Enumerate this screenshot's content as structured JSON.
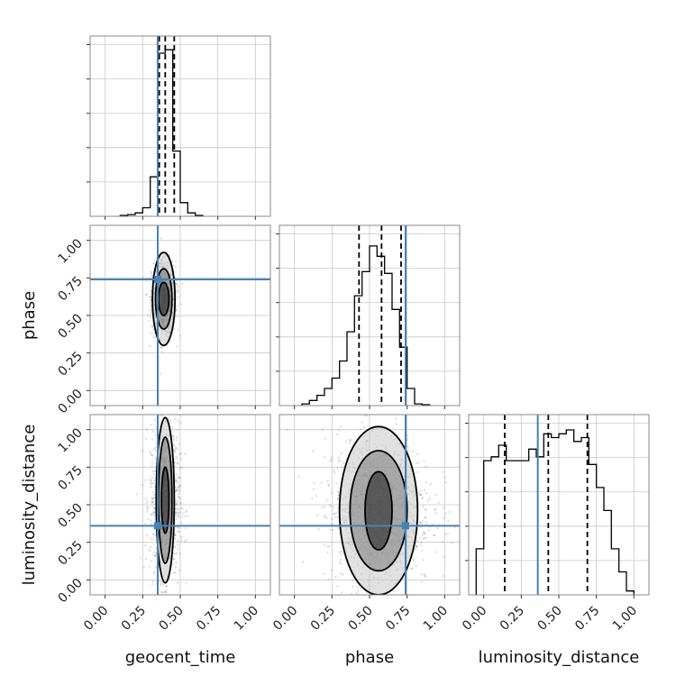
{
  "chart_data": {
    "type": "corner",
    "parameters": [
      "geocent_time",
      "phase",
      "luminosity_distance"
    ],
    "truths": [
      0.35,
      0.74,
      0.36
    ],
    "range": [
      -0.1,
      1.1
    ],
    "ticks": [
      0.0,
      0.25,
      0.5,
      0.75,
      1.0
    ],
    "tick_labels": [
      "0.00",
      "0.25",
      "0.50",
      "0.75",
      "1.00"
    ],
    "grid": true,
    "colors": {
      "truth": "#4682b4",
      "hist": "#000000",
      "grid": "#c8c8c8",
      "frame": "#888888"
    },
    "histograms": [
      {
        "param": "geocent_time",
        "bin_edges": [
          0.1,
          0.15,
          0.2,
          0.25,
          0.3,
          0.35,
          0.4,
          0.45,
          0.5,
          0.55,
          0.6,
          0.65
        ],
        "counts": [
          0.5,
          1,
          2,
          5,
          23,
          95,
          97,
          38,
          8,
          2,
          0.5
        ],
        "ymax": 105,
        "quantiles": [
          0.36,
          0.4,
          0.46
        ]
      },
      {
        "param": "phase",
        "bin_edges": [
          0.05,
          0.1,
          0.15,
          0.2,
          0.25,
          0.3,
          0.35,
          0.4,
          0.45,
          0.5,
          0.55,
          0.6,
          0.65,
          0.7,
          0.75,
          0.8,
          0.85,
          0.9
        ],
        "counts": [
          1,
          3,
          6,
          10,
          16,
          26,
          43,
          64,
          78,
          93,
          87,
          77,
          56,
          34,
          10,
          1,
          0.5
        ],
        "ymax": 105,
        "quantiles": [
          0.43,
          0.58,
          0.71
        ]
      },
      {
        "param": "luminosity_distance",
        "bin_edges": [
          -0.05,
          0.0,
          0.05,
          0.1,
          0.15,
          0.2,
          0.25,
          0.3,
          0.35,
          0.4,
          0.45,
          0.5,
          0.55,
          0.6,
          0.65,
          0.7,
          0.75,
          0.8,
          0.85,
          0.9,
          0.95,
          1.0
        ],
        "counts": [
          12,
          35,
          36,
          39,
          35,
          35,
          35,
          38,
          36,
          42,
          41,
          42,
          43,
          40,
          41,
          34,
          28,
          22,
          12,
          6,
          1
        ],
        "ymax": 47,
        "quantiles": [
          0.14,
          0.43,
          0.69
        ]
      }
    ],
    "contours_2d": [
      {
        "x": "geocent_time",
        "y": "phase",
        "center": [
          0.39,
          0.61
        ],
        "spread": [
          0.04,
          0.13
        ],
        "levels": [
          [
            0.035,
            0.11
          ],
          [
            0.055,
            0.2
          ],
          [
            0.075,
            0.31
          ]
        ]
      },
      {
        "x": "geocent_time",
        "y": "luminosity_distance",
        "center": [
          0.4,
          0.53
        ],
        "spread": [
          0.05,
          0.27
        ],
        "levels": [
          [
            0.025,
            0.22
          ],
          [
            0.045,
            0.42
          ],
          [
            0.06,
            0.55
          ]
        ]
      },
      {
        "x": "phase",
        "y": "luminosity_distance",
        "center": [
          0.56,
          0.46
        ],
        "spread": [
          0.18,
          0.27
        ],
        "levels": [
          [
            0.09,
            0.26
          ],
          [
            0.19,
            0.4
          ],
          [
            0.26,
            0.56
          ]
        ]
      }
    ]
  }
}
